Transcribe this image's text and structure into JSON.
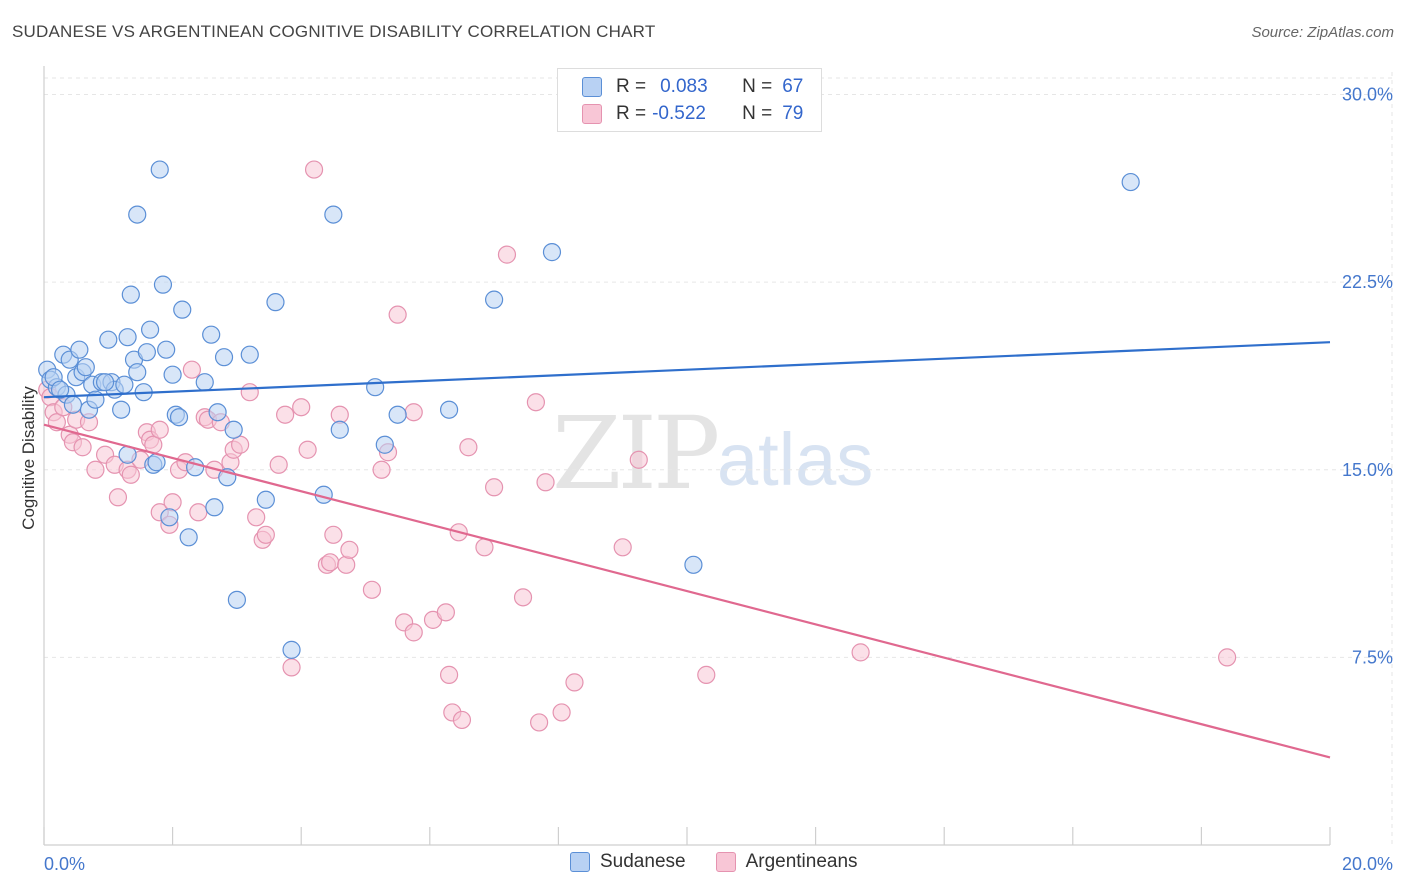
{
  "title": "SUDANESE VS ARGENTINEAN COGNITIVE DISABILITY CORRELATION CHART",
  "source": "Source: ZipAtlas.com",
  "watermark": {
    "zip": "ZIP",
    "atlas": "atlas"
  },
  "legend": {
    "rows": [
      {
        "r_label": "R =",
        "r_value": "0.083",
        "n_label": "N =",
        "n_value": "67"
      },
      {
        "r_label": "R =",
        "r_value": "-0.522",
        "n_label": "N =",
        "n_value": "79"
      }
    ]
  },
  "bottom_legend": [
    "Sudanese",
    "Argentineans"
  ],
  "colors": {
    "sudanese_fill": "#b8d1f3",
    "sudanese_stroke": "#5b8fd6",
    "sudanese_line": "#2f6fcc",
    "argentinean_fill": "#f8c6d6",
    "argentinean_stroke": "#e593b0",
    "argentinean_line": "#e0688f",
    "tick_text": "#4477cc",
    "grid": "#e6e6e6"
  },
  "chart_data": {
    "type": "scatter",
    "title": "SUDANESE VS ARGENTINEAN COGNITIVE DISABILITY CORRELATION CHART",
    "xlabel": "",
    "ylabel": "Cognitive Disability",
    "xlim": [
      0,
      20
    ],
    "ylim": [
      0,
      30.9
    ],
    "x_tick_labels": [
      "0.0%",
      "20.0%"
    ],
    "y_ticks": [
      7.5,
      15.0,
      22.5,
      30.0
    ],
    "y_tick_labels": [
      "7.5%",
      "15.0%",
      "22.5%",
      "30.0%"
    ],
    "grid": true,
    "legend_position": "top-center",
    "series": [
      {
        "name": "Sudanese",
        "trend": {
          "x": [
            0,
            20
          ],
          "y": [
            17.9,
            20.1
          ]
        },
        "points": [
          [
            0.05,
            19.0
          ],
          [
            0.1,
            18.6
          ],
          [
            0.2,
            18.3
          ],
          [
            0.3,
            19.6
          ],
          [
            0.35,
            18.0
          ],
          [
            0.4,
            19.4
          ],
          [
            0.45,
            17.6
          ],
          [
            0.5,
            18.7
          ],
          [
            0.55,
            19.8
          ],
          [
            0.6,
            18.9
          ],
          [
            0.7,
            17.4
          ],
          [
            0.75,
            18.4
          ],
          [
            0.8,
            17.8
          ],
          [
            0.9,
            18.5
          ],
          [
            1.0,
            20.2
          ],
          [
            1.05,
            18.5
          ],
          [
            1.1,
            18.2
          ],
          [
            1.2,
            17.4
          ],
          [
            1.25,
            18.4
          ],
          [
            1.3,
            15.6
          ],
          [
            1.3,
            20.3
          ],
          [
            1.35,
            22.0
          ],
          [
            1.4,
            19.4
          ],
          [
            1.45,
            18.9
          ],
          [
            1.45,
            25.2
          ],
          [
            1.55,
            18.1
          ],
          [
            1.6,
            19.7
          ],
          [
            1.65,
            20.6
          ],
          [
            1.7,
            15.2
          ],
          [
            1.75,
            15.3
          ],
          [
            1.8,
            27.0
          ],
          [
            1.85,
            22.4
          ],
          [
            1.9,
            19.8
          ],
          [
            1.95,
            13.1
          ],
          [
            2.0,
            18.8
          ],
          [
            2.05,
            17.2
          ],
          [
            2.1,
            17.1
          ],
          [
            2.15,
            21.4
          ],
          [
            2.25,
            12.3
          ],
          [
            2.35,
            15.1
          ],
          [
            2.5,
            18.5
          ],
          [
            2.6,
            20.4
          ],
          [
            2.65,
            13.5
          ],
          [
            2.7,
            17.3
          ],
          [
            2.8,
            19.5
          ],
          [
            2.85,
            14.7
          ],
          [
            2.95,
            16.6
          ],
          [
            3.0,
            9.8
          ],
          [
            3.2,
            19.6
          ],
          [
            3.45,
            13.8
          ],
          [
            3.6,
            21.7
          ],
          [
            3.85,
            7.8
          ],
          [
            4.35,
            14.0
          ],
          [
            4.5,
            25.2
          ],
          [
            4.6,
            16.6
          ],
          [
            5.15,
            18.3
          ],
          [
            5.3,
            16.0
          ],
          [
            5.5,
            17.2
          ],
          [
            6.3,
            17.4
          ],
          [
            7.0,
            21.8
          ],
          [
            7.9,
            23.7
          ],
          [
            10.1,
            11.2
          ],
          [
            16.9,
            26.5
          ],
          [
            0.15,
            18.7
          ],
          [
            0.25,
            18.2
          ],
          [
            0.65,
            19.1
          ],
          [
            0.95,
            18.5
          ]
        ]
      },
      {
        "name": "Argentineans",
        "trend": {
          "x": [
            0,
            20
          ],
          "y": [
            16.8,
            3.5
          ]
        },
        "points": [
          [
            0.05,
            18.2
          ],
          [
            0.1,
            17.9
          ],
          [
            0.15,
            17.3
          ],
          [
            0.2,
            16.9
          ],
          [
            0.3,
            17.5
          ],
          [
            0.4,
            16.4
          ],
          [
            0.45,
            16.1
          ],
          [
            0.5,
            17.0
          ],
          [
            0.6,
            15.9
          ],
          [
            0.7,
            16.9
          ],
          [
            0.8,
            15.0
          ],
          [
            0.95,
            15.6
          ],
          [
            1.1,
            15.2
          ],
          [
            1.15,
            13.9
          ],
          [
            1.3,
            15.0
          ],
          [
            1.35,
            14.8
          ],
          [
            1.5,
            15.4
          ],
          [
            1.6,
            16.5
          ],
          [
            1.65,
            16.2
          ],
          [
            1.7,
            16.0
          ],
          [
            1.8,
            16.6
          ],
          [
            1.8,
            13.3
          ],
          [
            1.95,
            12.8
          ],
          [
            2.0,
            13.7
          ],
          [
            2.1,
            15.0
          ],
          [
            2.2,
            15.3
          ],
          [
            2.3,
            19.0
          ],
          [
            2.4,
            13.3
          ],
          [
            2.5,
            17.1
          ],
          [
            2.55,
            17.0
          ],
          [
            2.65,
            15.0
          ],
          [
            2.75,
            16.9
          ],
          [
            2.9,
            15.3
          ],
          [
            2.95,
            15.8
          ],
          [
            3.05,
            16.0
          ],
          [
            3.2,
            18.1
          ],
          [
            3.3,
            13.1
          ],
          [
            3.4,
            12.2
          ],
          [
            3.45,
            12.4
          ],
          [
            3.65,
            15.2
          ],
          [
            3.75,
            17.2
          ],
          [
            3.85,
            7.1
          ],
          [
            4.0,
            17.5
          ],
          [
            4.1,
            15.8
          ],
          [
            4.2,
            27.0
          ],
          [
            4.4,
            11.2
          ],
          [
            4.45,
            11.3
          ],
          [
            4.5,
            12.4
          ],
          [
            4.6,
            17.2
          ],
          [
            4.7,
            11.2
          ],
          [
            4.75,
            11.8
          ],
          [
            5.1,
            10.2
          ],
          [
            5.25,
            15.0
          ],
          [
            5.35,
            15.7
          ],
          [
            5.5,
            21.2
          ],
          [
            5.6,
            8.9
          ],
          [
            5.75,
            17.3
          ],
          [
            5.75,
            8.5
          ],
          [
            6.05,
            9.0
          ],
          [
            6.25,
            9.3
          ],
          [
            6.3,
            6.8
          ],
          [
            6.35,
            5.3
          ],
          [
            6.45,
            12.5
          ],
          [
            6.5,
            5.0
          ],
          [
            6.6,
            15.9
          ],
          [
            6.85,
            11.9
          ],
          [
            7.0,
            14.3
          ],
          [
            7.2,
            23.6
          ],
          [
            7.45,
            9.9
          ],
          [
            7.65,
            17.7
          ],
          [
            7.7,
            4.9
          ],
          [
            7.8,
            14.5
          ],
          [
            8.05,
            5.3
          ],
          [
            8.25,
            6.5
          ],
          [
            9.0,
            11.9
          ],
          [
            9.25,
            15.4
          ],
          [
            10.3,
            6.8
          ],
          [
            12.7,
            7.7
          ],
          [
            18.4,
            7.5
          ]
        ]
      }
    ]
  }
}
